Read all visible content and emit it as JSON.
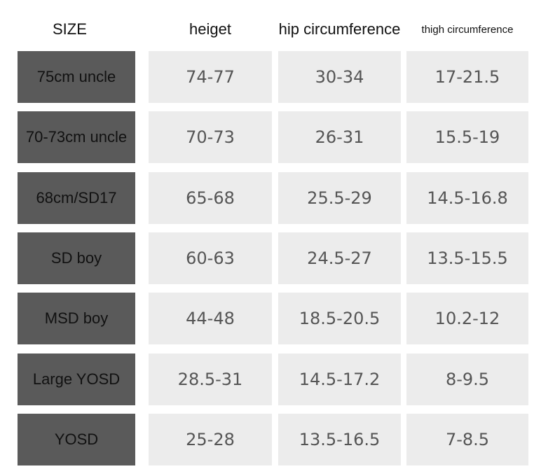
{
  "table": {
    "header": [
      "SIZE",
      "heiget",
      "hip circumference",
      "thigh circumference"
    ],
    "rows": [
      [
        "75cm uncle",
        "74-77",
        "30-34",
        "17-21.5"
      ],
      [
        "70-73cm uncle",
        "70-73",
        "26-31",
        "15.5-19"
      ],
      [
        "68cm/SD17",
        "65-68",
        "25.5-29",
        "14.5-16.8"
      ],
      [
        "SD boy",
        "60-63",
        "24.5-27",
        "13.5-15.5"
      ],
      [
        "MSD boy",
        "44-48",
        "18.5-20.5",
        "10.2-12"
      ],
      [
        "Large YOSD",
        "28.5-31",
        "14.5-17.2",
        "8-9.5"
      ],
      [
        "YOSD",
        "25-28",
        "13.5-16.5",
        "7-8.5"
      ]
    ]
  }
}
